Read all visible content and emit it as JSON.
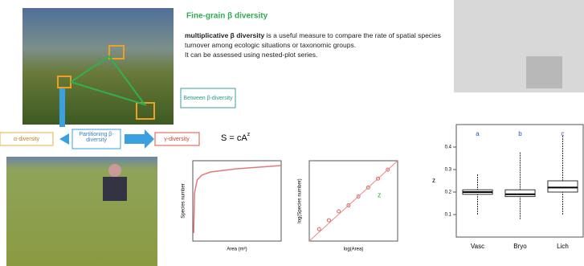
{
  "heading": "Fine-grain β diversity",
  "body": {
    "term": "multiplicative β diversity",
    "text": "is a useful measure to compare the rate of spatial species turnover among ecologic situations or taxonomic groups.",
    "note": "It can be assessed using nested-plot series."
  },
  "diagram": {
    "between": "Between β-diversity",
    "alpha": "α-diversity",
    "partition": "Partitioning β-diversity",
    "gamma": "γ-diversity"
  },
  "formula": {
    "base": "S = cA",
    "exp": "z"
  },
  "species_area": {
    "type": "line",
    "x_label": "Area (m²)",
    "y_label": "Species number",
    "x": [
      1,
      2,
      5,
      10,
      20,
      50,
      100
    ],
    "y": [
      5,
      30,
      38,
      41,
      43,
      45,
      47
    ],
    "xlim": [
      0,
      100
    ],
    "ylim": [
      0,
      50
    ],
    "color": "#e07a7a"
  },
  "log_plot": {
    "type": "scatter",
    "x_label": "log(Area)",
    "y_label": "log(Species number)",
    "slope_label": "z",
    "x": [
      0.5,
      1,
      1.5,
      2,
      2.5,
      3,
      3.5,
      4
    ],
    "y": [
      1.2,
      1.5,
      1.8,
      2.0,
      2.3,
      2.6,
      2.9,
      3.2
    ],
    "xlim": [
      0,
      4.5
    ],
    "ylim": [
      0.8,
      3.5
    ],
    "color": "#d66"
  },
  "boxplot": {
    "type": "box",
    "y_label": "z",
    "ylim": [
      0,
      0.5
    ],
    "yticks": [
      0.1,
      0.2,
      0.3,
      0.4
    ],
    "groups": [
      {
        "name": "Vasc",
        "letter": "a",
        "whisker_low": 0.1,
        "q1": 0.19,
        "median": 0.2,
        "q3": 0.21,
        "whisker_high": 0.28
      },
      {
        "name": "Bryo",
        "letter": "b",
        "whisker_low": 0.08,
        "q1": 0.18,
        "median": 0.19,
        "q3": 0.21,
        "whisker_high": 0.38
      },
      {
        "name": "Lich",
        "letter": "c",
        "whisker_low": 0.1,
        "q1": 0.2,
        "median": 0.22,
        "q3": 0.25,
        "whisker_high": 0.45
      }
    ]
  }
}
